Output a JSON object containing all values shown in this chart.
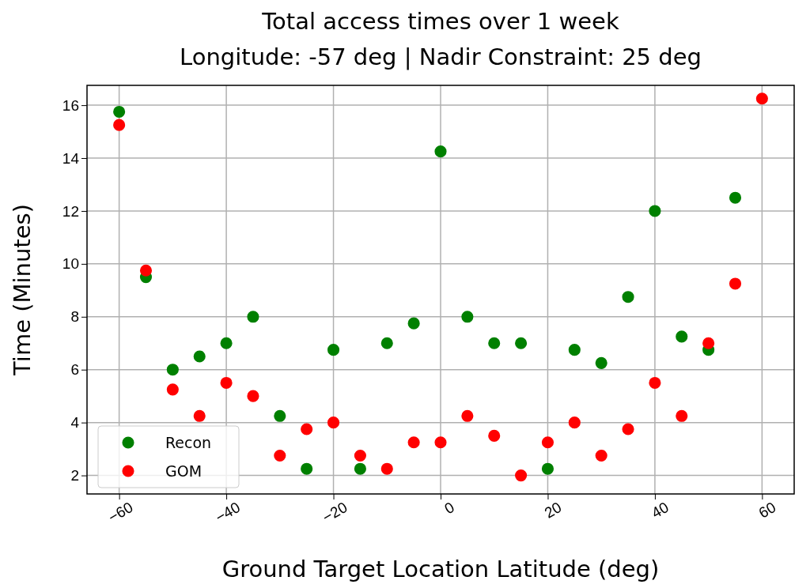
{
  "chart_data": {
    "type": "scatter",
    "title": "Total access times over 1 week",
    "subtitle": "Longitude: -57 deg | Nadir Constraint: 25 deg",
    "xlabel": "Ground Target Location Latitude (deg)",
    "ylabel": "Time (Minutes)",
    "x": [
      -60,
      -55,
      -50,
      -45,
      -40,
      -35,
      -30,
      -25,
      -20,
      -15,
      -10,
      -5,
      0,
      5,
      10,
      15,
      20,
      25,
      30,
      35,
      40,
      45,
      50,
      55,
      60
    ],
    "series": [
      {
        "name": "Recon",
        "color": "#008000",
        "values": [
          15.75,
          9.5,
          6,
          6.5,
          7,
          8,
          4.25,
          2.25,
          6.75,
          2.25,
          7,
          7.75,
          14.25,
          8,
          7,
          7,
          2.25,
          6.75,
          6.25,
          8.75,
          12,
          7.25,
          6.75,
          12.5,
          null
        ]
      },
      {
        "name": "GOM",
        "color": "#ff0000",
        "values": [
          15.25,
          9.75,
          5.25,
          4.25,
          5.5,
          5,
          2.75,
          3.75,
          4,
          2.75,
          2.25,
          3.25,
          3.25,
          4.25,
          3.5,
          2,
          3.25,
          4,
          2.75,
          3.75,
          5.5,
          4.25,
          7,
          9.25,
          16.25
        ]
      }
    ],
    "xlim": [
      -66,
      66
    ],
    "xticks": [
      {
        "value": -60,
        "label": "−60"
      },
      {
        "value": -40,
        "label": "−40"
      },
      {
        "value": -20,
        "label": "−20"
      },
      0,
      20,
      40,
      60
    ],
    "ylim": [
      1.3,
      16.75
    ],
    "yticks": [
      2,
      4,
      6,
      8,
      10,
      12,
      14,
      16
    ],
    "grid": true,
    "legend": "bottom left",
    "marker": "circle"
  }
}
